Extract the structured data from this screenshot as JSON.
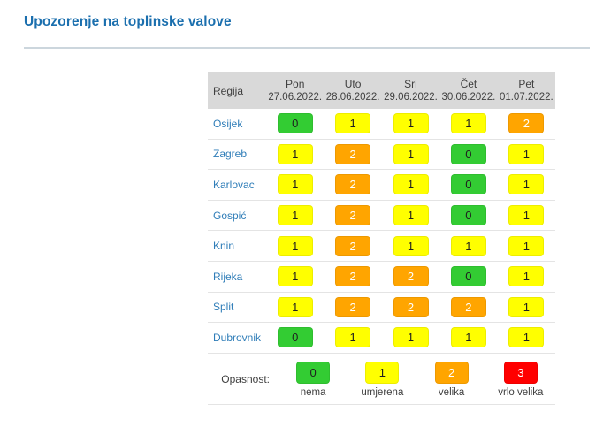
{
  "page": {
    "title": "Upozorenje na toplinske valove"
  },
  "table": {
    "region_header": "Regija",
    "columns": [
      {
        "day": "Pon",
        "date": "27.06.2022."
      },
      {
        "day": "Uto",
        "date": "28.06.2022."
      },
      {
        "day": "Sri",
        "date": "29.06.2022."
      },
      {
        "day": "Čet",
        "date": "30.06.2022."
      },
      {
        "day": "Pet",
        "date": "01.07.2022."
      }
    ],
    "rows": [
      {
        "region": "Osijek",
        "values": [
          0,
          1,
          1,
          1,
          2
        ]
      },
      {
        "region": "Zagreb",
        "values": [
          1,
          2,
          1,
          0,
          1
        ]
      },
      {
        "region": "Karlovac",
        "values": [
          1,
          2,
          1,
          0,
          1
        ]
      },
      {
        "region": "Gospić",
        "values": [
          1,
          2,
          1,
          0,
          1
        ]
      },
      {
        "region": "Knin",
        "values": [
          1,
          2,
          1,
          1,
          1
        ]
      },
      {
        "region": "Rijeka",
        "values": [
          1,
          2,
          2,
          0,
          1
        ]
      },
      {
        "region": "Split",
        "values": [
          1,
          2,
          2,
          2,
          1
        ]
      },
      {
        "region": "Dubrovnik",
        "values": [
          0,
          1,
          1,
          1,
          1
        ]
      }
    ]
  },
  "legend": {
    "label": "Opasnost:",
    "items": [
      {
        "value": 0,
        "label": "nema"
      },
      {
        "value": 1,
        "label": "umjerena"
      },
      {
        "value": 2,
        "label": "velika"
      },
      {
        "value": 3,
        "label": "vrlo velika"
      }
    ]
  },
  "colors": {
    "level0": "#33cc33",
    "level1": "#ffff00",
    "level2": "#ffa500",
    "level3": "#ff0000",
    "level_text_dark": "#1f1f1f",
    "level_text_light": "#fefefe",
    "title_blue": "#1b6fae",
    "region_blue": "#2f7db8",
    "header_gray": "#d9d9d9"
  },
  "chart_data": {
    "type": "heatmap",
    "title": "Upozorenje na toplinske valove",
    "x": [
      "Pon 27.06.2022.",
      "Uto 28.06.2022.",
      "Sri 29.06.2022.",
      "Čet 30.06.2022.",
      "Pet 01.07.2022."
    ],
    "y": [
      "Osijek",
      "Zagreb",
      "Karlovac",
      "Gospić",
      "Knin",
      "Rijeka",
      "Split",
      "Dubrovnik"
    ],
    "values": [
      [
        0,
        1,
        1,
        1,
        2
      ],
      [
        1,
        2,
        1,
        0,
        1
      ],
      [
        1,
        2,
        1,
        0,
        1
      ],
      [
        1,
        2,
        1,
        0,
        1
      ],
      [
        1,
        2,
        1,
        1,
        1
      ],
      [
        1,
        2,
        2,
        0,
        1
      ],
      [
        1,
        2,
        2,
        2,
        1
      ],
      [
        0,
        1,
        1,
        1,
        1
      ]
    ],
    "value_scale": [
      {
        "value": 0,
        "meaning": "nema",
        "color": "#33cc33"
      },
      {
        "value": 1,
        "meaning": "umjerena",
        "color": "#ffff00"
      },
      {
        "value": 2,
        "meaning": "velika",
        "color": "#ffa500"
      },
      {
        "value": 3,
        "meaning": "vrlo velika",
        "color": "#ff0000"
      }
    ],
    "legend_position": "bottom"
  }
}
